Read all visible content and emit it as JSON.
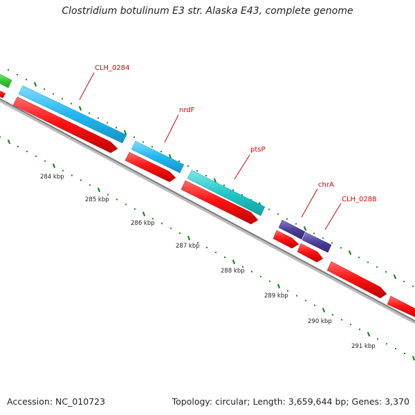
{
  "title": "Clostridium botulinum E3 str. Alaska E43, complete genome",
  "footer": {
    "accession": "Accession: NC_010723",
    "summary": "Topology: circular; Length: 3,659,644 bp; Genes: 3,370"
  },
  "colors": {
    "cds_red": "#ff1010",
    "gene_blue": "#20b8f0",
    "gene_teal": "#20c8c8",
    "gene_purple": "#4a3f9a",
    "gene_green": "#3ccc3c",
    "tick_green": "#138a13",
    "label_red": "#dd0000",
    "backbone": "#808080"
  },
  "gene_labels": [
    "CLH_0284",
    "nrdF",
    "ptsP",
    "chrA",
    "CLH_0288"
  ],
  "scale_labels": [
    "284 kbp",
    "285 kbp",
    "286 kbp",
    "287 kbp",
    "288 kbp",
    "289 kbp",
    "290 kbp",
    "291 kbp"
  ]
}
